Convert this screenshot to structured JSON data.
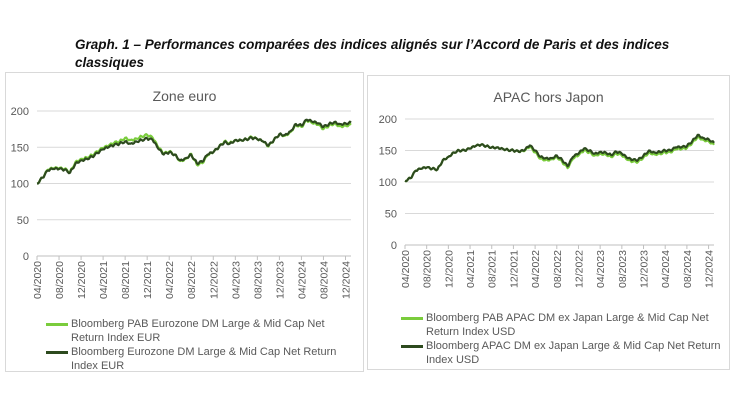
{
  "figure_title": "Graph. 1 – Performances comparées des indices alignés sur l’Accord de Paris et des indices classiques",
  "colors": {
    "pab": "#7acc3c",
    "benchmark": "#2d4a1e",
    "grid": "#d9d9d9",
    "text": "#595959"
  },
  "chart_data": [
    {
      "type": "line",
      "title": "Zone euro",
      "ylim": [
        0,
        200
      ],
      "y_ticks": [
        "0",
        "50",
        "100",
        "150",
        "200"
      ],
      "x_ticks": [
        "04/2020",
        "08/2020",
        "12/2020",
        "04/2021",
        "08/2021",
        "12/2021",
        "04/2022",
        "08/2022",
        "12/2022",
        "04/2023",
        "08/2023",
        "12/2023",
        "04/2024",
        "08/2024",
        "12/2024"
      ],
      "grid": true,
      "legend_placement": "bottom",
      "x": [
        "2020-04",
        "2020-05",
        "2020-06",
        "2020-07",
        "2020-08",
        "2020-09",
        "2020-10",
        "2020-11",
        "2020-12",
        "2021-01",
        "2021-02",
        "2021-03",
        "2021-04",
        "2021-05",
        "2021-06",
        "2021-07",
        "2021-08",
        "2021-09",
        "2021-10",
        "2021-11",
        "2021-12",
        "2022-01",
        "2022-02",
        "2022-03",
        "2022-04",
        "2022-05",
        "2022-06",
        "2022-07",
        "2022-08",
        "2022-09",
        "2022-10",
        "2022-11",
        "2022-12",
        "2023-01",
        "2023-02",
        "2023-03",
        "2023-04",
        "2023-05",
        "2023-06",
        "2023-07",
        "2023-08",
        "2023-09",
        "2023-10",
        "2023-11",
        "2023-12",
        "2024-01",
        "2024-02",
        "2024-03",
        "2024-04",
        "2024-05",
        "2024-06",
        "2024-07",
        "2024-08",
        "2024-09",
        "2024-10",
        "2024-11",
        "2024-12",
        "2025-01"
      ],
      "series": [
        {
          "name": "Bloomberg PAB Eurozone DM Large & Mid Cap Net Return Index EUR",
          "color": "#7acc3c",
          "values": [
            100,
            108,
            119,
            121,
            121,
            120,
            116,
            130,
            134,
            136,
            139,
            144,
            149,
            152,
            156,
            158,
            163,
            160,
            162,
            165,
            167,
            163,
            150,
            141,
            144,
            140,
            131,
            134,
            141,
            126,
            128,
            139,
            143,
            150,
            158,
            156,
            160,
            160,
            161,
            164,
            161,
            158,
            151,
            160,
            168,
            166,
            171,
            181,
            178,
            187,
            183,
            181,
            175,
            180,
            183,
            179,
            180,
            181
          ]
        },
        {
          "name": "Bloomberg Eurozone DM Large & Mid Cap Net Return Index EUR",
          "color": "#2d4a1e",
          "values": [
            100,
            108,
            118,
            120,
            120,
            119,
            115,
            128,
            132,
            134,
            137,
            142,
            147,
            150,
            153,
            155,
            158,
            155,
            158,
            160,
            162,
            160,
            148,
            140,
            143,
            140,
            132,
            135,
            140,
            128,
            130,
            140,
            143,
            150,
            157,
            155,
            160,
            160,
            161,
            163,
            161,
            158,
            152,
            160,
            168,
            167,
            172,
            182,
            180,
            188,
            185,
            183,
            178,
            182,
            185,
            182,
            183,
            184
          ]
        }
      ]
    },
    {
      "type": "line",
      "title": "APAC hors Japon",
      "ylim": [
        0,
        200
      ],
      "y_ticks": [
        "0",
        "50",
        "100",
        "150",
        "200"
      ],
      "x_ticks": [
        "04/2020",
        "08/2020",
        "12/2020",
        "04/2021",
        "08/2021",
        "12/2021",
        "04/2022",
        "08/2022",
        "12/2022",
        "04/2023",
        "08/2023",
        "12/2023",
        "04/2024",
        "08/2024",
        "12/2024"
      ],
      "grid": true,
      "legend_placement": "bottom",
      "x": [
        "2020-04",
        "2020-05",
        "2020-06",
        "2020-07",
        "2020-08",
        "2020-09",
        "2020-10",
        "2020-11",
        "2020-12",
        "2021-01",
        "2021-02",
        "2021-03",
        "2021-04",
        "2021-05",
        "2021-06",
        "2021-07",
        "2021-08",
        "2021-09",
        "2021-10",
        "2021-11",
        "2021-12",
        "2022-01",
        "2022-02",
        "2022-03",
        "2022-04",
        "2022-05",
        "2022-06",
        "2022-07",
        "2022-08",
        "2022-09",
        "2022-10",
        "2022-11",
        "2022-12",
        "2023-01",
        "2023-02",
        "2023-03",
        "2023-04",
        "2023-05",
        "2023-06",
        "2023-07",
        "2023-08",
        "2023-09",
        "2023-10",
        "2023-11",
        "2023-12",
        "2024-01",
        "2024-02",
        "2024-03",
        "2024-04",
        "2024-05",
        "2024-06",
        "2024-07",
        "2024-08",
        "2024-09",
        "2024-10",
        "2024-11",
        "2024-12",
        "2025-01"
      ],
      "series": [
        {
          "name": "Bloomberg PAB APAC DM ex Japan Large & Mid Cap Net Return Index USD",
          "color": "#7acc3c",
          "values": [
            102,
            106,
            118,
            121,
            123,
            121,
            120,
            135,
            140,
            147,
            150,
            150,
            153,
            157,
            159,
            157,
            155,
            155,
            153,
            151,
            150,
            148,
            149,
            156,
            147,
            137,
            135,
            136,
            140,
            132,
            122,
            137,
            142,
            150,
            147,
            142,
            145,
            144,
            140,
            145,
            142,
            135,
            132,
            132,
            139,
            147,
            144,
            145,
            147,
            147,
            152,
            152,
            154,
            162,
            172,
            167,
            165,
            159
          ]
        },
        {
          "name": "Bloomberg APAC DM ex Japan Large & Mid Cap Net Return Index USD",
          "color": "#2d4a1e",
          "values": [
            102,
            106,
            118,
            121,
            123,
            121,
            120,
            135,
            140,
            147,
            150,
            150,
            153,
            157,
            159,
            157,
            155,
            155,
            153,
            151,
            150,
            148,
            150,
            158,
            150,
            140,
            138,
            138,
            142,
            135,
            125,
            140,
            145,
            153,
            150,
            145,
            148,
            147,
            143,
            148,
            145,
            138,
            135,
            135,
            142,
            150,
            147,
            148,
            150,
            150,
            155,
            155,
            157,
            165,
            175,
            170,
            168,
            162
          ]
        }
      ]
    }
  ]
}
